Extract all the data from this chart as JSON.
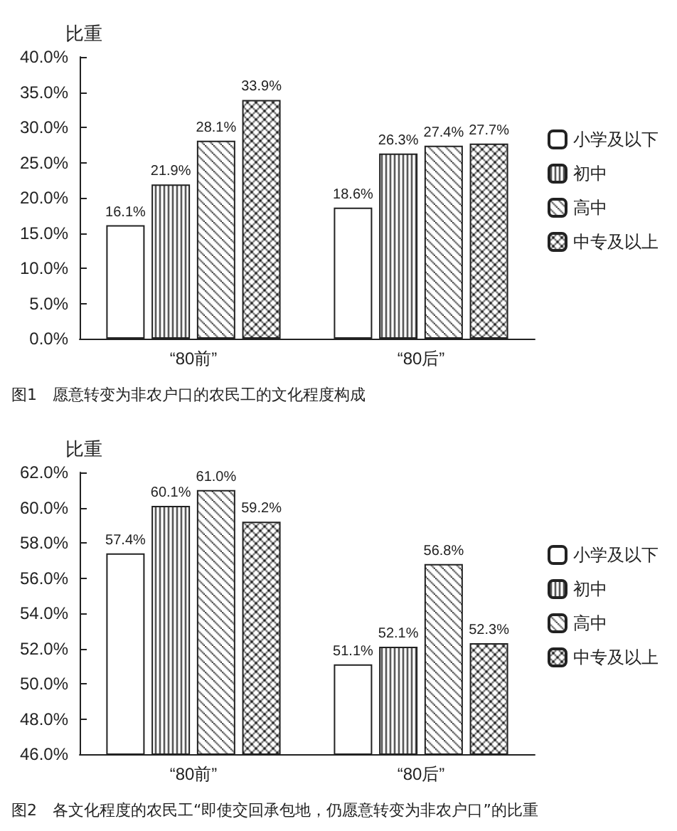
{
  "chart_data": [
    {
      "type": "bar",
      "ylabel": "比重",
      "categories": [
        "“80前”",
        "“80后”"
      ],
      "series": [
        {
          "name": "小学及以下",
          "color": "#ffffff",
          "values": [
            16.1,
            18.6
          ],
          "value_labels": [
            "16.1%",
            "18.6%"
          ]
        },
        {
          "name": "初中",
          "color": "#222222",
          "values": [
            21.9,
            26.3
          ],
          "value_labels": [
            "21.9%",
            "26.3%"
          ]
        },
        {
          "name": "高中",
          "color": "#222222",
          "values": [
            28.1,
            27.4
          ],
          "value_labels": [
            "28.1%",
            "27.4%"
          ]
        },
        {
          "name": "中专及以上",
          "color": "#222222",
          "values": [
            33.9,
            27.7
          ],
          "value_labels": [
            "33.9%",
            "27.7%"
          ]
        }
      ],
      "ylim": [
        0,
        40
      ],
      "yticks": [
        {
          "value": 0,
          "label": "0.0%"
        },
        {
          "value": 5,
          "label": "5.0%"
        },
        {
          "value": 10,
          "label": "10.0%"
        },
        {
          "value": 15,
          "label": "15.0%"
        },
        {
          "value": 20,
          "label": "20.0%"
        },
        {
          "value": 25,
          "label": "25.0%"
        },
        {
          "value": 30,
          "label": "30.0%"
        },
        {
          "value": 35,
          "label": "35.0%"
        },
        {
          "value": 40,
          "label": "40.0%"
        }
      ],
      "grid": false,
      "legend": "right",
      "annotations": [
        "图1　愿意转变为非农户口的农民工的文化程度构成"
      ]
    },
    {
      "type": "bar",
      "ylabel": "比重",
      "categories": [
        "“80前”",
        "“80后”"
      ],
      "series": [
        {
          "name": "小学及以下",
          "color": "#ffffff",
          "values": [
            57.4,
            51.1
          ],
          "value_labels": [
            "57.4%",
            "51.1%"
          ]
        },
        {
          "name": "初中",
          "color": "#222222",
          "values": [
            60.1,
            52.1
          ],
          "value_labels": [
            "60.1%",
            "52.1%"
          ]
        },
        {
          "name": "高中",
          "color": "#222222",
          "values": [
            61.0,
            56.8
          ],
          "value_labels": [
            "61.0%",
            "56.8%"
          ]
        },
        {
          "name": "中专及以上",
          "color": "#222222",
          "values": [
            59.2,
            52.3
          ],
          "value_labels": [
            "59.2%",
            "52.3%"
          ]
        }
      ],
      "ylim": [
        46,
        62
      ],
      "yticks": [
        {
          "value": 46,
          "label": "46.0%"
        },
        {
          "value": 48,
          "label": "48.0%"
        },
        {
          "value": 50,
          "label": "50.0%"
        },
        {
          "value": 52,
          "label": "52.0%"
        },
        {
          "value": 54,
          "label": "54.0%"
        },
        {
          "value": 56,
          "label": "56.0%"
        },
        {
          "value": 58,
          "label": "58.0%"
        },
        {
          "value": 60,
          "label": "60.0%"
        },
        {
          "value": 62,
          "label": "62.0%"
        }
      ],
      "grid": false,
      "legend": "right",
      "annotations": [
        "图2　各文化程度的农民工“即使交回承包地，仍愿意转变为非农户口”的比重"
      ]
    }
  ]
}
